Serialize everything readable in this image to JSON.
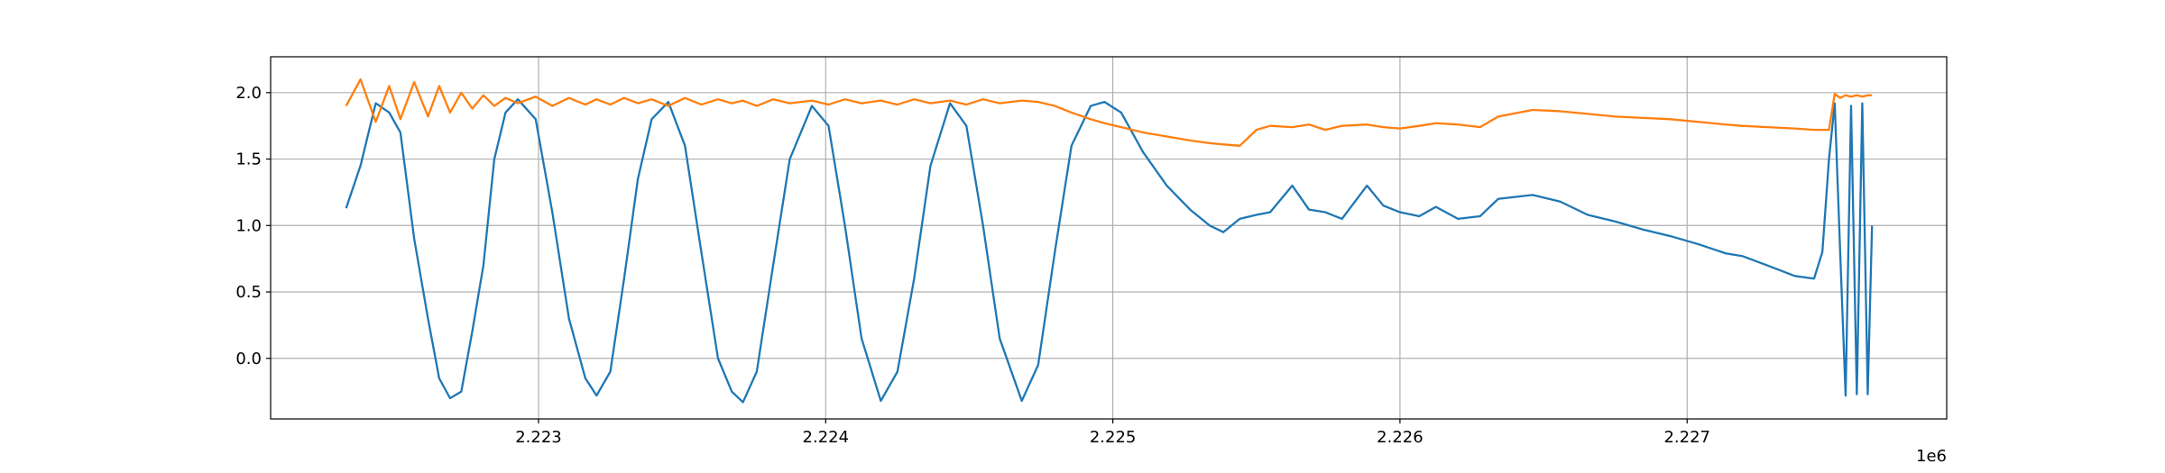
{
  "chart_data": {
    "type": "line",
    "x": [
      2222330,
      2222380,
      2222433,
      2222480,
      2222519,
      2222567,
      2222615,
      2222654,
      2222692,
      2222731,
      2222769,
      2222808,
      2222846,
      2222885,
      2222928,
      2222990,
      2223048,
      2223106,
      2223163,
      2223202,
      2223250,
      2223298,
      2223346,
      2223394,
      2223452,
      2223510,
      2223567,
      2223625,
      2223673,
      2223712,
      2223760,
      2223817,
      2223875,
      2223952,
      2224010,
      2224067,
      2224125,
      2224192,
      2224250,
      2224308,
      2224365,
      2224433,
      2224490,
      2224548,
      2224606,
      2224683,
      2224740,
      2224798,
      2224856,
      2224923,
      2224971,
      2225029,
      2225106,
      2225188,
      2225269,
      2225337,
      2225385,
      2225442,
      2225500,
      2225548,
      2225625,
      2225683,
      2225740,
      2225798,
      2225885,
      2225942,
      2226000,
      2226067,
      2226125,
      2226202,
      2226279,
      2226342,
      2226462,
      2226558,
      2226654,
      2226750,
      2226846,
      2226942,
      2227038,
      2227135,
      2227192,
      2227279,
      2227375,
      2227442,
      2227471,
      2227494,
      2227514,
      2227533,
      2227552,
      2227571,
      2227591,
      2227610,
      2227629,
      2227644
    ],
    "series": [
      {
        "color": "#1f77b4",
        "values": [
          1.13,
          1.45,
          1.92,
          1.85,
          1.7,
          0.9,
          0.3,
          -0.15,
          -0.3,
          -0.25,
          0.2,
          0.7,
          1.5,
          1.85,
          1.95,
          1.8,
          1.1,
          0.3,
          -0.15,
          -0.28,
          -0.1,
          0.6,
          1.35,
          1.8,
          1.93,
          1.6,
          0.8,
          0.0,
          -0.25,
          -0.33,
          -0.1,
          0.7,
          1.5,
          1.9,
          1.75,
          1.0,
          0.15,
          -0.32,
          -0.1,
          0.6,
          1.45,
          1.92,
          1.75,
          1.0,
          0.15,
          -0.32,
          -0.05,
          0.8,
          1.6,
          1.9,
          1.93,
          1.85,
          1.55,
          1.3,
          1.12,
          1.0,
          0.95,
          1.05,
          1.08,
          1.1,
          1.3,
          1.12,
          1.1,
          1.05,
          1.3,
          1.15,
          1.1,
          1.07,
          1.14,
          1.05,
          1.07,
          1.2,
          1.23,
          1.18,
          1.08,
          1.03,
          0.97,
          0.92,
          0.86,
          0.79,
          0.77,
          0.7,
          0.62,
          0.6,
          0.8,
          1.5,
          1.92,
          0.8,
          -0.28,
          1.9,
          -0.27,
          1.92,
          -0.27,
          1.0
        ]
      },
      {
        "color": "#ff7f0e",
        "values": [
          1.9,
          2.1,
          1.78,
          2.05,
          1.8,
          2.08,
          1.82,
          2.05,
          1.85,
          2.0,
          1.88,
          1.98,
          1.9,
          1.96,
          1.92,
          1.97,
          1.9,
          1.96,
          1.91,
          1.95,
          1.91,
          1.96,
          1.92,
          1.95,
          1.9,
          1.96,
          1.91,
          1.95,
          1.92,
          1.94,
          1.9,
          1.95,
          1.92,
          1.94,
          1.91,
          1.95,
          1.92,
          1.94,
          1.91,
          1.95,
          1.92,
          1.94,
          1.91,
          1.95,
          1.92,
          1.94,
          1.93,
          1.9,
          1.85,
          1.8,
          1.77,
          1.74,
          1.7,
          1.67,
          1.64,
          1.62,
          1.61,
          1.6,
          1.72,
          1.75,
          1.74,
          1.76,
          1.72,
          1.75,
          1.76,
          1.74,
          1.73,
          1.75,
          1.77,
          1.76,
          1.74,
          1.82,
          1.87,
          1.86,
          1.84,
          1.82,
          1.81,
          1.8,
          1.78,
          1.76,
          1.75,
          1.74,
          1.73,
          1.72,
          1.72,
          1.72,
          1.99,
          1.96,
          1.98,
          1.97,
          1.98,
          1.97,
          1.98,
          1.98
        ]
      }
    ],
    "xlim": [
      2222067,
      2227904
    ],
    "xticks": [
      {
        "value": 2223000,
        "label": "2.223"
      },
      {
        "value": 2224000,
        "label": "2.224"
      },
      {
        "value": 2225000,
        "label": "2.225"
      },
      {
        "value": 2226000,
        "label": "2.226"
      },
      {
        "value": 2227000,
        "label": "2.227"
      }
    ],
    "x_offset_label": "1e6",
    "ylim": [
      -0.456,
      2.27
    ],
    "yticks": [
      {
        "value": 0,
        "label": "0.0"
      },
      {
        "value": 0.5,
        "label": "0.5"
      },
      {
        "value": 1,
        "label": "1.0"
      },
      {
        "value": 1.5,
        "label": "1.5"
      },
      {
        "value": 2,
        "label": "2.0"
      }
    ],
    "grid": true
  }
}
